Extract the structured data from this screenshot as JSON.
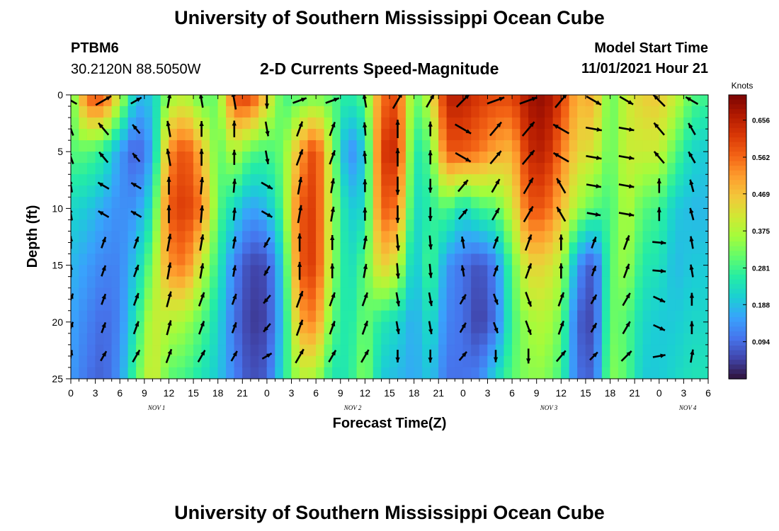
{
  "header": {
    "title": "University of Southern Mississippi Ocean Cube",
    "station": "PTBM6",
    "coords": "30.2120N  88.5050W",
    "subtitle": "2-D Currents Speed-Magnitude",
    "model_start_label": "Model Start Time",
    "model_start_value": "11/01/2021 Hour 21"
  },
  "footer": {
    "title": "University of Southern Mississippi Ocean Cube"
  },
  "chart_data": {
    "type": "heatmap",
    "title": "2-D Currents Speed-Magnitude",
    "xlabel": "Forecast Time(Z)",
    "ylabel": "Depth (ft)",
    "x_hours_range": [
      0,
      78
    ],
    "y_range": [
      0,
      25
    ],
    "y_ticks": [
      0,
      5,
      10,
      15,
      20,
      25
    ],
    "x_tick_labels": [
      "0",
      "3",
      "6",
      "9",
      "12",
      "15",
      "18",
      "21",
      "0",
      "3",
      "6",
      "9",
      "12",
      "15",
      "18",
      "21",
      "0",
      "3",
      "6",
      "9",
      "12",
      "15",
      "18",
      "21",
      "0",
      "3",
      "6"
    ],
    "date_labels": [
      {
        "text": "NOV 1",
        "hour": 10.5
      },
      {
        "text": "NOV 2",
        "hour": 34.5
      },
      {
        "text": "NOV 3",
        "hour": 58.5
      },
      {
        "text": "NOV 4",
        "hour": 75.5
      }
    ],
    "colorbar": {
      "label": "Knots",
      "ticks": [
        "0.656",
        "0.562",
        "0.469",
        "0.375",
        "0.281",
        "0.188",
        "0.094"
      ],
      "tick_values": [
        0.656,
        0.562,
        0.469,
        0.375,
        0.281,
        0.188,
        0.094
      ],
      "range": [
        0,
        0.72
      ],
      "colors": [
        "#30123b",
        "#4145ab",
        "#4675ed",
        "#39a2fc",
        "#1bcfd4",
        "#24eca6",
        "#61fc6c",
        "#a4fc3b",
        "#d1e834",
        "#f3c63a",
        "#fe9b2d",
        "#f36315",
        "#d93806",
        "#b11901",
        "#7a0403"
      ]
    },
    "speed_profile_by_hour": {
      "depths_ft": [
        0,
        5,
        10,
        15,
        20,
        25
      ],
      "hours": [
        0,
        2,
        4,
        6,
        8,
        10,
        12,
        14,
        16,
        18,
        20,
        22,
        24,
        26,
        28,
        30,
        32,
        34,
        36,
        38,
        40,
        42,
        44,
        46,
        48,
        50,
        52,
        54,
        56,
        58,
        60,
        62,
        64,
        66,
        68,
        70,
        72,
        74,
        76,
        78
      ],
      "speed_knots": [
        [
          0.28,
          0.3,
          0.22,
          0.18,
          0.16,
          0.15
        ],
        [
          0.58,
          0.3,
          0.2,
          0.15,
          0.12,
          0.1
        ],
        [
          0.6,
          0.26,
          0.16,
          0.12,
          0.09,
          0.08
        ],
        [
          0.4,
          0.15,
          0.13,
          0.12,
          0.12,
          0.14
        ],
        [
          0.18,
          0.07,
          0.14,
          0.2,
          0.25,
          0.3
        ],
        [
          0.2,
          0.16,
          0.24,
          0.33,
          0.4,
          0.42
        ],
        [
          0.35,
          0.52,
          0.58,
          0.52,
          0.38,
          0.3
        ],
        [
          0.38,
          0.6,
          0.62,
          0.55,
          0.36,
          0.28
        ],
        [
          0.3,
          0.48,
          0.55,
          0.4,
          0.3,
          0.24
        ],
        [
          0.32,
          0.3,
          0.3,
          0.26,
          0.22,
          0.2
        ],
        [
          0.6,
          0.38,
          0.22,
          0.12,
          0.1,
          0.12
        ],
        [
          0.62,
          0.3,
          0.15,
          0.05,
          0.04,
          0.06
        ],
        [
          0.45,
          0.28,
          0.18,
          0.06,
          0.05,
          0.08
        ],
        [
          0.28,
          0.32,
          0.3,
          0.22,
          0.2,
          0.24
        ],
        [
          0.3,
          0.5,
          0.58,
          0.58,
          0.5,
          0.38
        ],
        [
          0.32,
          0.62,
          0.62,
          0.62,
          0.54,
          0.36
        ],
        [
          0.3,
          0.35,
          0.36,
          0.35,
          0.3,
          0.24
        ],
        [
          0.25,
          0.12,
          0.2,
          0.22,
          0.24,
          0.25
        ],
        [
          0.3,
          0.2,
          0.22,
          0.3,
          0.32,
          0.34
        ],
        [
          0.55,
          0.62,
          0.58,
          0.46,
          0.25,
          0.2
        ],
        [
          0.6,
          0.64,
          0.55,
          0.4,
          0.22,
          0.18
        ],
        [
          0.3,
          0.24,
          0.22,
          0.18,
          0.16,
          0.16
        ],
        [
          0.4,
          0.3,
          0.26,
          0.3,
          0.24,
          0.2
        ],
        [
          0.66,
          0.58,
          0.3,
          0.14,
          0.12,
          0.1
        ],
        [
          0.66,
          0.58,
          0.22,
          0.1,
          0.1,
          0.1
        ],
        [
          0.62,
          0.55,
          0.28,
          0.06,
          0.04,
          0.12
        ],
        [
          0.6,
          0.5,
          0.3,
          0.12,
          0.1,
          0.22
        ],
        [
          0.6,
          0.48,
          0.4,
          0.3,
          0.28,
          0.3
        ],
        [
          0.68,
          0.64,
          0.58,
          0.44,
          0.36,
          0.34
        ],
        [
          0.7,
          0.66,
          0.58,
          0.44,
          0.38,
          0.34
        ],
        [
          0.62,
          0.55,
          0.48,
          0.38,
          0.32,
          0.28
        ],
        [
          0.48,
          0.44,
          0.36,
          0.14,
          0.08,
          0.1
        ],
        [
          0.5,
          0.42,
          0.3,
          0.06,
          0.05,
          0.08
        ],
        [
          0.3,
          0.3,
          0.28,
          0.3,
          0.32,
          0.34
        ],
        [
          0.4,
          0.4,
          0.38,
          0.36,
          0.3,
          0.3
        ],
        [
          0.45,
          0.4,
          0.3,
          0.25,
          0.22,
          0.2
        ],
        [
          0.46,
          0.4,
          0.28,
          0.24,
          0.2,
          0.2
        ],
        [
          0.4,
          0.3,
          0.2,
          0.18,
          0.2,
          0.22
        ],
        [
          0.3,
          0.22,
          0.18,
          0.2,
          0.22,
          0.24
        ],
        [
          0.28,
          0.2,
          0.18,
          0.2,
          0.22,
          0.24
        ]
      ]
    },
    "arrow_direction_deg_by_hour": {
      "note": "compass-style direction the arrow points (0 = up/north, 90 = right/east)",
      "depths_ft": [
        0,
        5,
        10,
        15,
        20,
        25
      ],
      "hours": [
        0,
        6,
        12,
        18,
        24,
        30,
        36,
        42,
        48,
        54,
        60,
        66,
        72,
        78
      ],
      "direction_deg": [
        [
          300,
          340,
          350,
          0,
          20,
          10
        ],
        [
          60,
          320,
          300,
          20,
          20,
          30
        ],
        [
          10,
          350,
          0,
          10,
          15,
          20
        ],
        [
          350,
          0,
          5,
          10,
          20,
          30
        ],
        [
          180,
          170,
          120,
          210,
          220,
          60
        ],
        [
          70,
          20,
          10,
          0,
          20,
          30
        ],
        [
          350,
          355,
          0,
          10,
          20,
          30
        ],
        [
          30,
          0,
          180,
          175,
          170,
          180
        ],
        [
          45,
          120,
          40,
          350,
          30,
          40
        ],
        [
          70,
          40,
          30,
          20,
          160,
          180
        ],
        [
          40,
          300,
          330,
          0,
          20,
          40
        ],
        [
          120,
          100,
          100,
          20,
          30,
          45
        ],
        [
          315,
          320,
          0,
          95,
          115,
          80
        ],
        [
          300,
          330,
          345,
          350,
          0,
          10
        ]
      ]
    }
  }
}
